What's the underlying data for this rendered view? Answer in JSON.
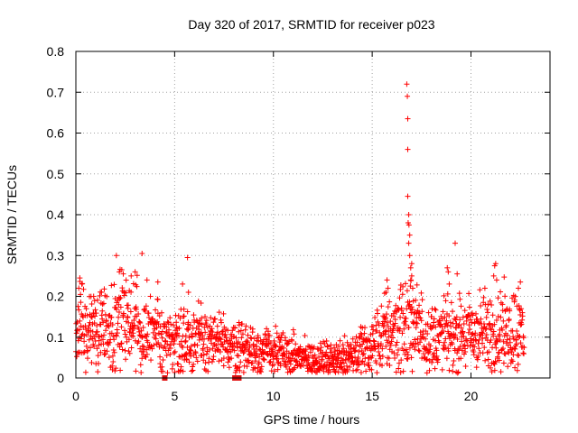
{
  "chart_data": {
    "type": "scatter",
    "title": "Day 320 of 2017, SRMTID for receiver p023",
    "xlabel": "GPS time / hours",
    "ylabel": "SRMTID / TECUs",
    "xlim": [
      0,
      24
    ],
    "ylim": [
      0,
      0.8
    ],
    "xticks": [
      0,
      5,
      10,
      15,
      20
    ],
    "yticks": [
      0,
      0.1,
      0.2,
      0.3,
      0.4,
      0.5,
      0.6,
      0.7,
      0.8
    ],
    "xtick_labels": [
      "0",
      "5",
      "10",
      "15",
      "20"
    ],
    "ytick_labels": [
      "0",
      "0.1",
      "0.2",
      "0.3",
      "0.4",
      "0.5",
      "0.6",
      "0.7",
      "0.8"
    ],
    "grid": true,
    "marker": "plus",
    "color": "#ff0000",
    "outlier_color": "#e01010",
    "baseline_profile": [
      [
        0.0,
        0.12
      ],
      [
        1.0,
        0.12
      ],
      [
        2.0,
        0.13
      ],
      [
        3.0,
        0.13
      ],
      [
        4.0,
        0.11
      ],
      [
        4.5,
        0.09
      ],
      [
        5.5,
        0.1
      ],
      [
        6.5,
        0.09
      ],
      [
        8.0,
        0.08
      ],
      [
        9.0,
        0.07
      ],
      [
        10.0,
        0.065
      ],
      [
        11.0,
        0.055
      ],
      [
        12.0,
        0.045
      ],
      [
        13.0,
        0.045
      ],
      [
        14.0,
        0.06
      ],
      [
        15.0,
        0.08
      ],
      [
        16.0,
        0.12
      ],
      [
        17.0,
        0.13
      ],
      [
        18.0,
        0.1
      ],
      [
        19.0,
        0.1
      ],
      [
        20.0,
        0.11
      ],
      [
        21.0,
        0.11
      ],
      [
        22.0,
        0.12
      ],
      [
        22.7,
        0.12
      ]
    ],
    "spikes": [
      [
        16.75,
        0.72
      ],
      [
        16.78,
        0.69
      ],
      [
        16.8,
        0.635
      ],
      [
        16.8,
        0.56
      ],
      [
        16.8,
        0.445
      ],
      [
        16.85,
        0.4
      ],
      [
        16.82,
        0.38
      ],
      [
        16.86,
        0.375
      ],
      [
        16.9,
        0.35
      ],
      [
        16.85,
        0.33
      ],
      [
        16.9,
        0.3
      ],
      [
        17.0,
        0.28
      ],
      [
        16.95,
        0.27
      ],
      [
        17.0,
        0.25
      ],
      [
        16.95,
        0.24
      ],
      [
        17.05,
        0.22
      ],
      [
        19.2,
        0.33
      ],
      [
        18.8,
        0.27
      ],
      [
        18.85,
        0.26
      ],
      [
        19.3,
        0.255
      ],
      [
        18.9,
        0.23
      ],
      [
        21.25,
        0.28
      ],
      [
        21.2,
        0.275
      ],
      [
        21.15,
        0.25
      ],
      [
        21.3,
        0.24
      ],
      [
        22.5,
        0.235
      ],
      [
        22.4,
        0.22
      ],
      [
        3.35,
        0.305
      ],
      [
        2.05,
        0.3
      ],
      [
        2.2,
        0.26
      ],
      [
        2.4,
        0.255
      ],
      [
        2.8,
        0.25
      ],
      [
        3.0,
        0.26
      ],
      [
        3.6,
        0.24
      ],
      [
        4.15,
        0.235
      ],
      [
        5.65,
        0.295
      ],
      [
        5.4,
        0.23
      ],
      [
        5.7,
        0.21
      ],
      [
        0.2,
        0.245
      ],
      [
        0.3,
        0.23
      ],
      [
        0.15,
        0.22
      ],
      [
        1.3,
        0.21
      ],
      [
        0.9,
        0.2
      ],
      [
        15.75,
        0.24
      ],
      [
        15.8,
        0.22
      ],
      [
        15.7,
        0.21
      ]
    ],
    "outliers": [
      [
        4.5,
        0.0
      ],
      [
        8.05,
        0.0
      ],
      [
        8.25,
        0.0
      ]
    ]
  }
}
